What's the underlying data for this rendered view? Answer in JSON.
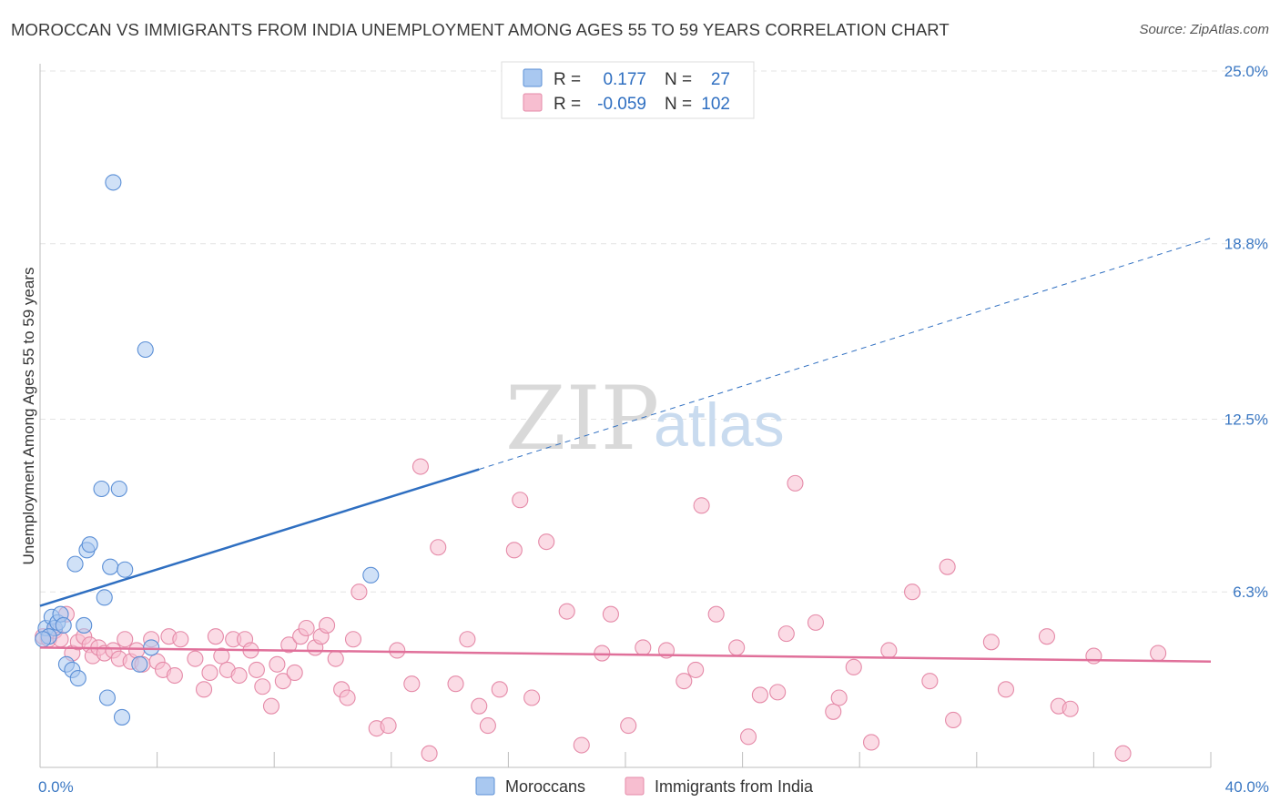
{
  "header": {
    "title": "MOROCCAN VS IMMIGRANTS FROM INDIA UNEMPLOYMENT AMONG AGES 55 TO 59 YEARS CORRELATION CHART",
    "source": "Source: ZipAtlas.com"
  },
  "watermark": {
    "zip": "ZIP",
    "atlas": "atlas"
  },
  "legend": {
    "rows": [
      {
        "r_label": "R =",
        "r_value": "0.177",
        "n_label": "N =",
        "n_value": "27",
        "color": "#a9c8f0",
        "stroke": "#5b8fd6"
      },
      {
        "r_label": "R =",
        "r_value": "-0.059",
        "n_label": "N =",
        "n_value": "102",
        "color": "#f7bed0",
        "stroke": "#e58aa8"
      }
    ]
  },
  "bottom_legend": {
    "items": [
      {
        "label": "Moroccans",
        "color": "#a9c8f0",
        "stroke": "#5b8fd6"
      },
      {
        "label": "Immigrants from India",
        "color": "#f7bed0",
        "stroke": "#e58aa8"
      }
    ]
  },
  "chart_data": {
    "type": "scatter",
    "title": "MOROCCAN VS IMMIGRANTS FROM INDIA UNEMPLOYMENT AMONG AGES 55 TO 59 YEARS CORRELATION CHART",
    "xlabel": "",
    "ylabel": "Unemployment Among Ages 55 to 59 years",
    "xlim": [
      0,
      40
    ],
    "ylim": [
      0,
      25
    ],
    "x_tick_labels": [
      "0.0%",
      "40.0%"
    ],
    "y_ticks": [
      6.3,
      12.5,
      18.8,
      25.0
    ],
    "y_tick_labels": [
      "6.3%",
      "12.5%",
      "18.8%",
      "25.0%"
    ],
    "grid": true,
    "legend_position": "top-center",
    "series": [
      {
        "name": "Moroccans",
        "color": "#a9c8f0",
        "stroke": "#5b8fd6",
        "trend_color": "#2f6fc1",
        "trend": {
          "x0": 0,
          "y0": 5.8,
          "x1": 15,
          "y1": 10.7,
          "dash_to_x": 40,
          "dash_to_y": 19.0
        },
        "points": [
          [
            0.2,
            5.0
          ],
          [
            0.4,
            5.4
          ],
          [
            0.5,
            5.0
          ],
          [
            0.6,
            5.2
          ],
          [
            0.7,
            5.5
          ],
          [
            0.8,
            5.1
          ],
          [
            0.9,
            3.7
          ],
          [
            1.1,
            3.5
          ],
          [
            1.3,
            3.2
          ],
          [
            1.5,
            5.1
          ],
          [
            1.2,
            7.3
          ],
          [
            1.6,
            7.8
          ],
          [
            1.7,
            8.0
          ],
          [
            2.1,
            10.0
          ],
          [
            2.2,
            6.1
          ],
          [
            2.4,
            7.2
          ],
          [
            2.5,
            21.0
          ],
          [
            2.7,
            10.0
          ],
          [
            2.9,
            7.1
          ],
          [
            3.6,
            15.0
          ],
          [
            3.4,
            3.7
          ],
          [
            3.8,
            4.3
          ],
          [
            2.3,
            2.5
          ],
          [
            2.8,
            1.8
          ],
          [
            11.3,
            6.9
          ],
          [
            0.3,
            4.7
          ],
          [
            0.1,
            4.6
          ]
        ]
      },
      {
        "name": "Immigrants from India",
        "color": "#f7bed0",
        "stroke": "#e58aa8",
        "trend_color": "#e0709a",
        "trend": {
          "x0": 0,
          "y0": 4.3,
          "x1": 40,
          "y1": 3.8
        },
        "points": [
          [
            0.1,
            4.7
          ],
          [
            0.3,
            4.6
          ],
          [
            0.5,
            4.9
          ],
          [
            0.7,
            4.6
          ],
          [
            0.9,
            5.5
          ],
          [
            1.1,
            4.1
          ],
          [
            1.3,
            4.5
          ],
          [
            1.5,
            4.7
          ],
          [
            1.7,
            4.4
          ],
          [
            1.8,
            4.0
          ],
          [
            2.0,
            4.3
          ],
          [
            2.2,
            4.1
          ],
          [
            2.5,
            4.2
          ],
          [
            2.7,
            3.9
          ],
          [
            2.9,
            4.6
          ],
          [
            3.1,
            3.8
          ],
          [
            3.3,
            4.2
          ],
          [
            3.5,
            3.7
          ],
          [
            3.8,
            4.6
          ],
          [
            4.0,
            3.8
          ],
          [
            4.2,
            3.5
          ],
          [
            4.4,
            4.7
          ],
          [
            4.6,
            3.3
          ],
          [
            4.8,
            4.6
          ],
          [
            5.3,
            3.9
          ],
          [
            5.6,
            2.8
          ],
          [
            5.8,
            3.4
          ],
          [
            6.0,
            4.7
          ],
          [
            6.2,
            4.0
          ],
          [
            6.4,
            3.5
          ],
          [
            6.6,
            4.6
          ],
          [
            6.8,
            3.3
          ],
          [
            7.0,
            4.6
          ],
          [
            7.2,
            4.2
          ],
          [
            7.4,
            3.5
          ],
          [
            7.6,
            2.9
          ],
          [
            7.9,
            2.2
          ],
          [
            8.1,
            3.7
          ],
          [
            8.3,
            3.1
          ],
          [
            8.5,
            4.4
          ],
          [
            8.7,
            3.4
          ],
          [
            8.9,
            4.7
          ],
          [
            9.1,
            5.0
          ],
          [
            9.4,
            4.3
          ],
          [
            9.6,
            4.7
          ],
          [
            9.8,
            5.1
          ],
          [
            10.1,
            3.9
          ],
          [
            10.3,
            2.8
          ],
          [
            10.5,
            2.5
          ],
          [
            10.7,
            4.6
          ],
          [
            10.9,
            6.3
          ],
          [
            11.5,
            1.4
          ],
          [
            11.9,
            1.5
          ],
          [
            12.2,
            4.2
          ],
          [
            12.7,
            3.0
          ],
          [
            13.0,
            10.8
          ],
          [
            13.3,
            0.5
          ],
          [
            13.6,
            7.9
          ],
          [
            14.2,
            3.0
          ],
          [
            14.6,
            4.6
          ],
          [
            15.0,
            2.2
          ],
          [
            15.3,
            1.5
          ],
          [
            15.7,
            2.8
          ],
          [
            16.2,
            7.8
          ],
          [
            16.4,
            9.6
          ],
          [
            16.8,
            2.5
          ],
          [
            17.3,
            8.1
          ],
          [
            18.0,
            5.6
          ],
          [
            18.5,
            0.8
          ],
          [
            19.2,
            4.1
          ],
          [
            19.5,
            5.5
          ],
          [
            20.1,
            1.5
          ],
          [
            20.6,
            4.3
          ],
          [
            21.4,
            4.2
          ],
          [
            22.0,
            3.1
          ],
          [
            22.4,
            3.5
          ],
          [
            23.1,
            5.5
          ],
          [
            23.8,
            4.3
          ],
          [
            24.2,
            1.1
          ],
          [
            24.6,
            2.6
          ],
          [
            25.2,
            2.7
          ],
          [
            25.5,
            4.8
          ],
          [
            25.8,
            10.2
          ],
          [
            26.5,
            5.2
          ],
          [
            27.1,
            2.0
          ],
          [
            27.8,
            3.6
          ],
          [
            28.4,
            0.9
          ],
          [
            29.0,
            4.2
          ],
          [
            29.8,
            6.3
          ],
          [
            30.4,
            3.1
          ],
          [
            31.2,
            1.7
          ],
          [
            32.5,
            4.5
          ],
          [
            33.0,
            2.8
          ],
          [
            34.4,
            4.7
          ],
          [
            34.8,
            2.2
          ],
          [
            35.2,
            2.1
          ],
          [
            36.0,
            4.0
          ],
          [
            37.0,
            0.5
          ],
          [
            38.2,
            4.1
          ],
          [
            31.0,
            7.2
          ],
          [
            22.6,
            9.4
          ],
          [
            27.3,
            2.5
          ]
        ]
      }
    ]
  }
}
